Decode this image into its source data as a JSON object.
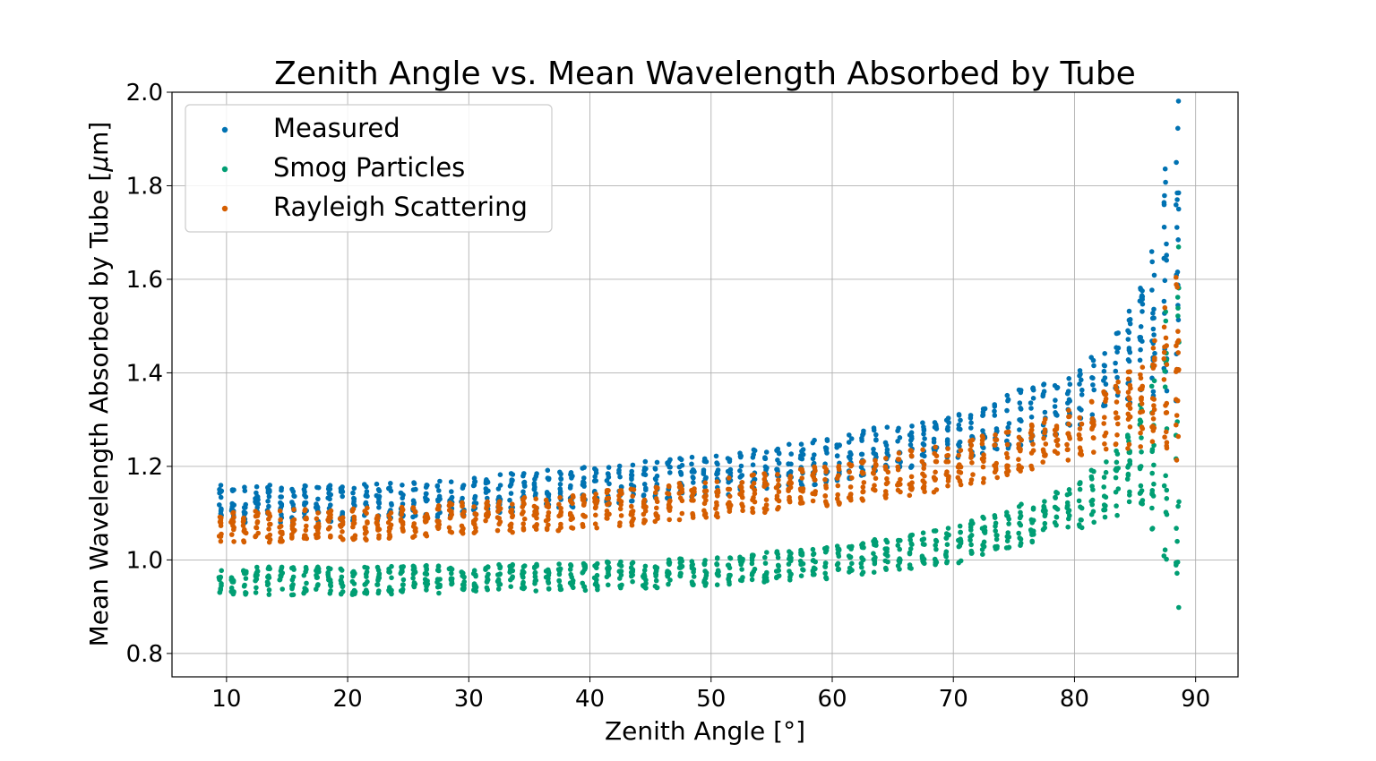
{
  "chart_data": {
    "type": "scatter",
    "title": "Zenith Angle vs. Mean Wavelength Absorbed by Tube",
    "xlabel": "Zenith Angle [°]",
    "ylabel_prefix": "Mean Wavelength Absorbed by Tube [",
    "ylabel_mu": "μ",
    "ylabel_suffix": "m]",
    "xlim": [
      5.5,
      93.5
    ],
    "ylim": [
      0.75,
      2.0
    ],
    "xticks": [
      10,
      20,
      30,
      40,
      50,
      60,
      70,
      80,
      90
    ],
    "xtick_labels": [
      "10",
      "20",
      "30",
      "40",
      "50",
      "60",
      "70",
      "80",
      "90"
    ],
    "yticks": [
      0.8,
      1.0,
      1.2,
      1.4,
      1.6,
      1.8,
      2.0
    ],
    "ytick_labels": [
      "0.8",
      "1.0",
      "1.2",
      "1.4",
      "1.6",
      "1.8",
      "2.0"
    ],
    "grid": true,
    "legend_position": "top-left",
    "x_range_of_points": [
      9.5,
      89
    ],
    "series": [
      {
        "name": "Measured",
        "color": "#0072B2",
        "trend_x": [
          10,
          20,
          30,
          40,
          50,
          60,
          70,
          75,
          80,
          83,
          85,
          87,
          89
        ],
        "trend_y": [
          1.12,
          1.12,
          1.135,
          1.16,
          1.18,
          1.215,
          1.265,
          1.3,
          1.34,
          1.39,
          1.45,
          1.55,
          1.65
        ],
        "spread_y": [
          0.04,
          0.04,
          0.04,
          0.045,
          0.045,
          0.05,
          0.05,
          0.06,
          0.06,
          0.08,
          0.12,
          0.2,
          0.45
        ]
      },
      {
        "name": "Smog Particles",
        "color": "#009E73",
        "trend_x": [
          10,
          20,
          30,
          40,
          50,
          60,
          70,
          75,
          80,
          83,
          85,
          87,
          89
        ],
        "trend_y": [
          0.955,
          0.955,
          0.96,
          0.965,
          0.975,
          0.995,
          1.03,
          1.07,
          1.11,
          1.16,
          1.21,
          1.25,
          1.3
        ],
        "spread_y": [
          0.03,
          0.03,
          0.03,
          0.03,
          0.03,
          0.035,
          0.04,
          0.045,
          0.05,
          0.07,
          0.1,
          0.2,
          0.5
        ]
      },
      {
        "name": "Rayleigh Scattering",
        "color": "#D55E00",
        "trend_x": [
          10,
          20,
          30,
          40,
          50,
          60,
          70,
          75,
          80,
          83,
          85,
          87,
          89
        ],
        "trend_y": [
          1.07,
          1.075,
          1.09,
          1.105,
          1.13,
          1.16,
          1.2,
          1.23,
          1.27,
          1.3,
          1.33,
          1.36,
          1.45
        ],
        "spread_y": [
          0.035,
          0.035,
          0.035,
          0.04,
          0.04,
          0.045,
          0.05,
          0.05,
          0.055,
          0.07,
          0.09,
          0.13,
          0.25
        ]
      }
    ]
  }
}
